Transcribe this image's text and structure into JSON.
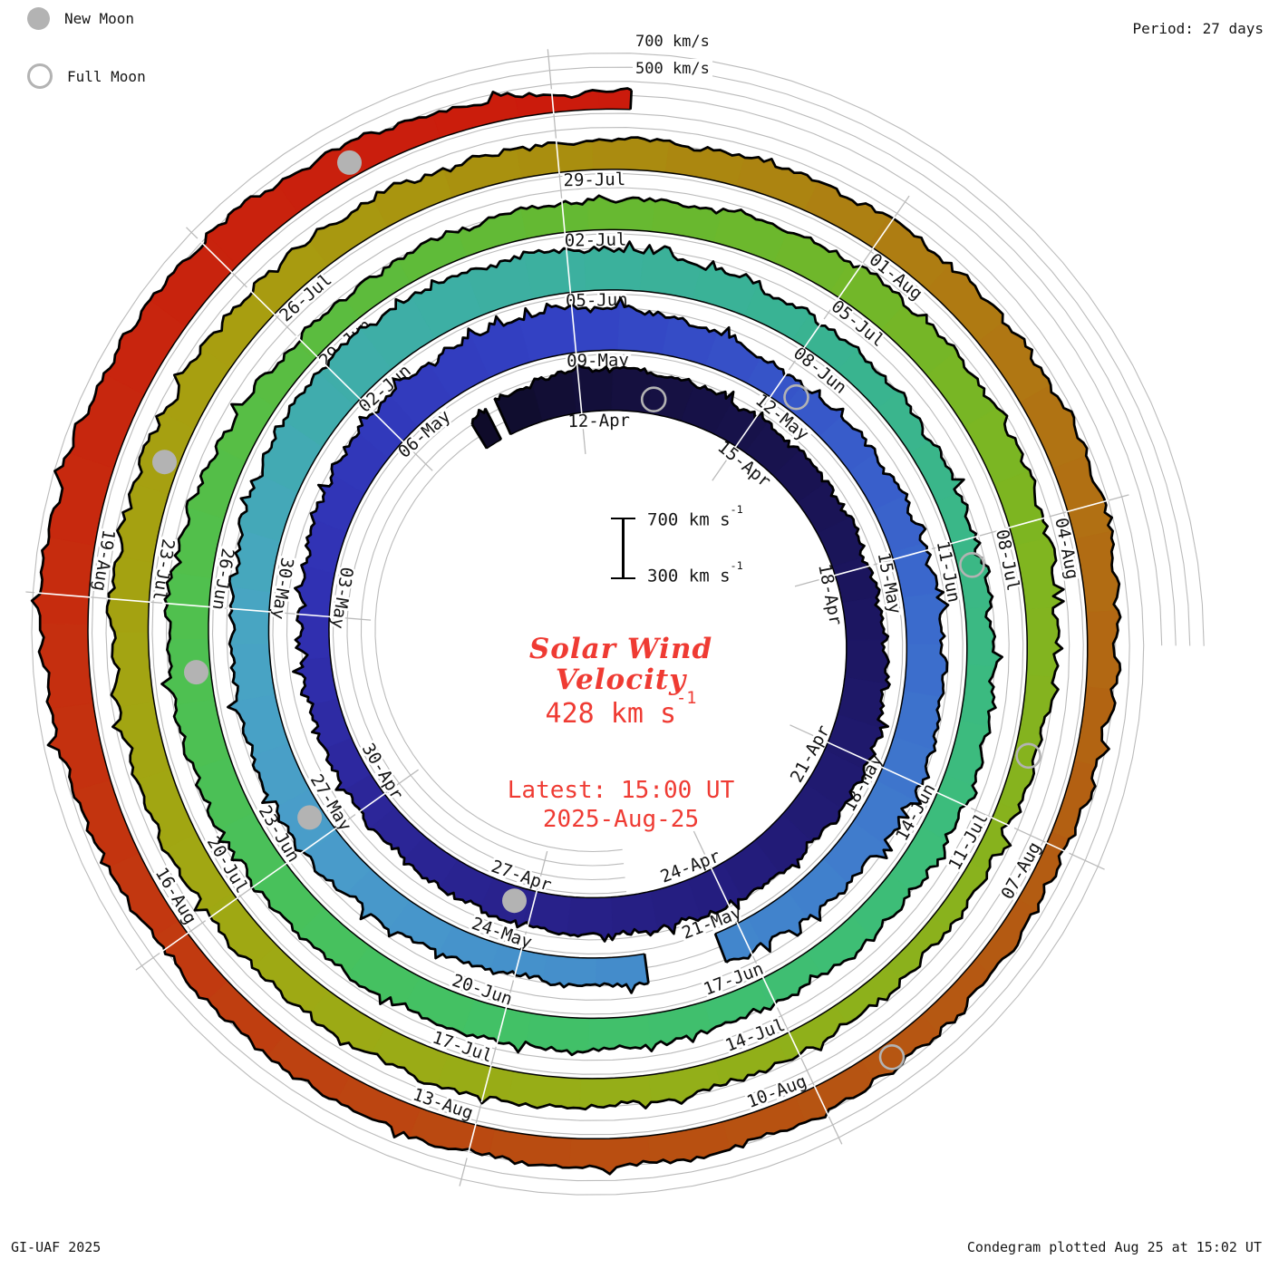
{
  "legend": {
    "new_moon_label": "New Moon",
    "full_moon_label": "Full Moon"
  },
  "header": {
    "period_label": "Period: 27 days"
  },
  "outer_scale": {
    "label_700": "700 km/s",
    "label_500": "500 km/s"
  },
  "scale_bar": {
    "top_text": "700 km s",
    "top_exp": "-1",
    "bottom_text": "300 km s",
    "bottom_exp": "-1"
  },
  "center": {
    "title_line1": "Solar Wind",
    "title_line2": "Velocity",
    "value_text": "428 km s",
    "value_exp": "-1",
    "latest_line": "Latest: 15:00 UT",
    "date_line": "2025-Aug-25"
  },
  "footer": {
    "left": "GI-UAF 2025",
    "right": "Condegram plotted Aug 25 at 15:02 UT"
  },
  "colors": {
    "accent_red": "#ef3b33",
    "text": "#161616",
    "grid": "#bbbbbb",
    "moon_gray": "#b3b3b3",
    "outline": "#000000"
  },
  "chart_data": {
    "type": "area",
    "subtype": "condegram-polar-spiral",
    "title": "Solar Wind Velocity",
    "year": 2025,
    "period_days": 27,
    "top_date": "12-Apr",
    "direction": "clockwise",
    "angular_label_step_days": 3,
    "radial_scale": {
      "unit": "km/s",
      "baseline": 300,
      "max": 700,
      "gridlines": [
        400,
        500,
        600,
        700
      ]
    },
    "date_labels": [
      "12-Apr",
      "15-Apr",
      "18-Apr",
      "21-Apr",
      "24-Apr",
      "27-Apr",
      "30-Apr",
      "03-May",
      "06-May",
      "09-May",
      "12-May",
      "15-May",
      "18-May",
      "21-May",
      "24-May",
      "27-May",
      "30-May",
      "02-Jun",
      "05-Jun",
      "08-Jun",
      "11-Jun",
      "14-Jun",
      "17-Jun",
      "20-Jun",
      "23-Jun",
      "26-Jun",
      "29-Jun",
      "02-Jul",
      "05-Jul",
      "08-Jul",
      "11-Jul",
      "14-Jul",
      "17-Jul",
      "20-Jul",
      "23-Jul",
      "26-Jul",
      "29-Jul",
      "01-Aug",
      "04-Aug",
      "07-Aug",
      "10-Aug",
      "13-Aug",
      "16-Aug",
      "19-Aug"
    ],
    "series": [
      {
        "name": "solar wind velocity (km/s, estimated from band thickness)",
        "x": [
          "10-Apr",
          "12-Apr",
          "15-Apr",
          "18-Apr",
          "21-Apr",
          "24-Apr",
          "27-Apr",
          "30-Apr",
          "03-May",
          "06-May",
          "09-May",
          "12-May",
          "15-May",
          "18-May",
          "21-May",
          "24-May",
          "27-May",
          "30-May",
          "02-Jun",
          "05-Jun",
          "08-Jun",
          "11-Jun",
          "14-Jun",
          "17-Jun",
          "20-Jun",
          "23-Jun",
          "26-Jun",
          "29-Jun",
          "02-Jul",
          "05-Jul",
          "08-Jul",
          "11-Jul",
          "14-Jul",
          "17-Jul",
          "20-Jul",
          "23-Jul",
          "26-Jul",
          "29-Jul",
          "01-Aug",
          "04-Aug",
          "07-Aug",
          "10-Aug",
          "13-Aug",
          "16-Aug",
          "19-Aug",
          "22-Aug",
          "25-Aug"
        ],
        "values": [
          530,
          610,
          560,
          545,
          625,
          585,
          555,
          515,
          505,
          600,
          625,
          495,
          545,
          595,
          520,
          485,
          585,
          565,
          655,
          605,
          505,
          470,
          525,
          495,
          545,
          565,
          595,
          475,
          505,
          565,
          555,
          435,
          465,
          525,
          535,
          565,
          535,
          505,
          535,
          565,
          435,
          495,
          505,
          505,
          650,
          600,
          428
        ]
      }
    ],
    "data_start": {
      "date": "10-Apr"
    },
    "data_end": {
      "date": "25-Aug",
      "time": "15:00 UT",
      "value": 428
    },
    "data_gaps": [
      {
        "date": "10-Apr",
        "from_hour": 9,
        "to_hour": 14
      },
      {
        "date": "21-May",
        "from_hour": 8,
        "to_hour": 32
      }
    ],
    "moons": {
      "new_moon_dates": [
        "27-Apr",
        "27-May",
        "25-Jun",
        "24-Jul",
        "23-Aug"
      ],
      "full_moon_dates": [
        "13-Apr",
        "12-May",
        "11-Jun",
        "10-Jul",
        "09-Aug"
      ]
    },
    "colormap": [
      {
        "date": "10-Apr",
        "color": "#0e0b28"
      },
      {
        "date": "13-Apr",
        "color": "#151040"
      },
      {
        "date": "18-Apr",
        "color": "#1b155c"
      },
      {
        "date": "24-Apr",
        "color": "#241d7e"
      },
      {
        "date": "30-Apr",
        "color": "#2c2699"
      },
      {
        "date": "03-May",
        "color": "#3030b2"
      },
      {
        "date": "09-May",
        "color": "#3342c4"
      },
      {
        "date": "15-May",
        "color": "#3a66cc"
      },
      {
        "date": "21-May",
        "color": "#4286cc"
      },
      {
        "date": "27-May",
        "color": "#499cca"
      },
      {
        "date": "30-May",
        "color": "#48a5c2"
      },
      {
        "date": "02-Jun",
        "color": "#3fadaa"
      },
      {
        "date": "08-Jun",
        "color": "#39b392"
      },
      {
        "date": "14-Jun",
        "color": "#3cbc7c"
      },
      {
        "date": "20-Jun",
        "color": "#42c166"
      },
      {
        "date": "26-Jun",
        "color": "#50c04e"
      },
      {
        "date": "02-Jul",
        "color": "#64b933"
      },
      {
        "date": "08-Jul",
        "color": "#7eb521"
      },
      {
        "date": "14-Jul",
        "color": "#90b01a"
      },
      {
        "date": "20-Jul",
        "color": "#a0a813"
      },
      {
        "date": "26-Jul",
        "color": "#a89d10"
      },
      {
        "date": "29-Jul",
        "color": "#a98e0f"
      },
      {
        "date": "01-Aug",
        "color": "#ae7e12"
      },
      {
        "date": "04-Aug",
        "color": "#b17013"
      },
      {
        "date": "07-Aug",
        "color": "#b35d12"
      },
      {
        "date": "13-Aug",
        "color": "#ba4a11"
      },
      {
        "date": "16-Aug",
        "color": "#c13910"
      },
      {
        "date": "20-Aug",
        "color": "#c7280e"
      },
      {
        "date": "25-Aug",
        "color": "#cb1b0c"
      }
    ]
  }
}
